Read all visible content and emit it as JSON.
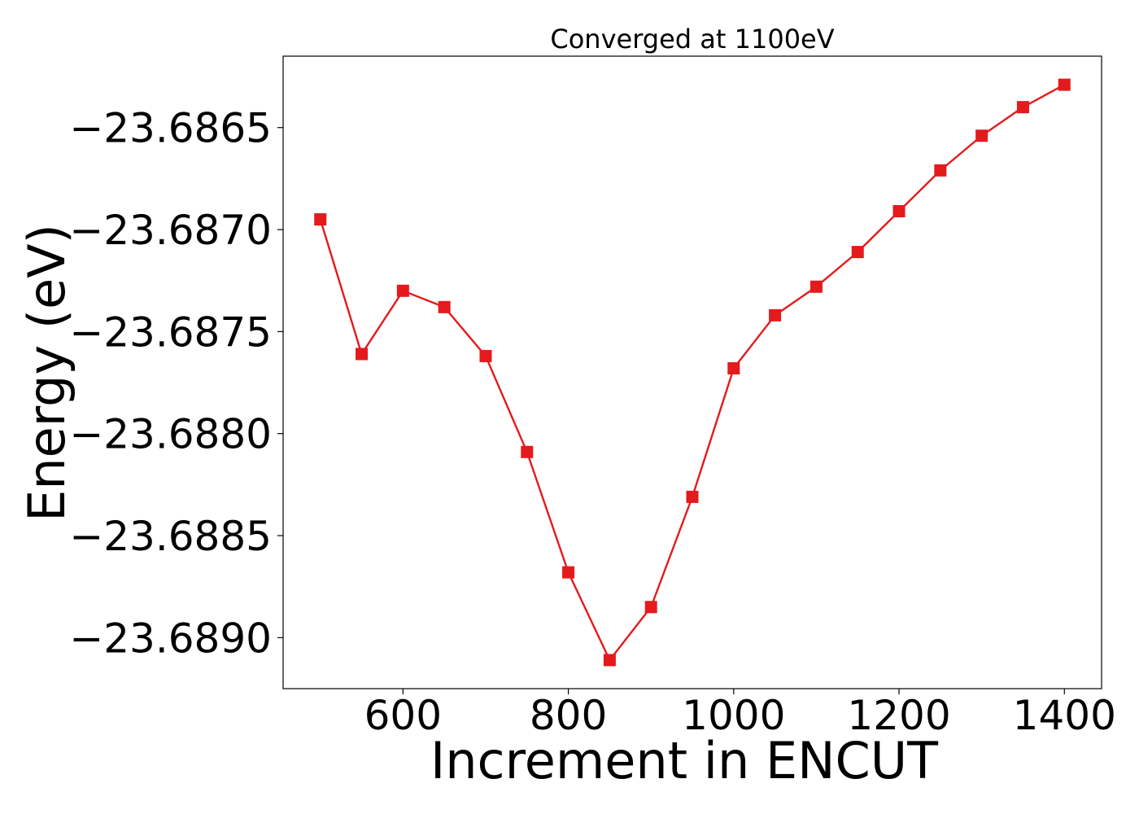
{
  "chart_data": {
    "type": "line",
    "title": "Converged at 1100eV",
    "xlabel": "Increment in ENCUT",
    "ylabel": "Energy (eV)",
    "xlim": [
      455,
      1445
    ],
    "ylim": [
      -23.68925,
      -23.68615
    ],
    "xticks": [
      600,
      800,
      1000,
      1200,
      1400
    ],
    "xtick_labels": [
      "600",
      "800",
      "1000",
      "1200",
      "1400"
    ],
    "yticks": [
      -23.6865,
      -23.687,
      -23.6875,
      -23.688,
      -23.6885,
      -23.689
    ],
    "ytick_labels": [
      "−23.6865",
      "−23.6870",
      "−23.6875",
      "−23.6880",
      "−23.6885",
      "−23.6890"
    ],
    "grid": false,
    "legend": "none",
    "series": [
      {
        "color": "#e41a1c",
        "marker": "square",
        "x": [
          500,
          550,
          600,
          650,
          700,
          750,
          800,
          850,
          900,
          950,
          1000,
          1050,
          1100,
          1150,
          1200,
          1250,
          1300,
          1350,
          1400
        ],
        "y": [
          -23.68695,
          -23.68761,
          -23.6873,
          -23.68738,
          -23.68762,
          -23.68809,
          -23.68868,
          -23.68911,
          -23.68885,
          -23.68831,
          -23.68768,
          -23.68742,
          -23.68728,
          -23.68711,
          -23.68691,
          -23.68671,
          -23.68654,
          -23.6864,
          -23.68629
        ]
      }
    ]
  }
}
